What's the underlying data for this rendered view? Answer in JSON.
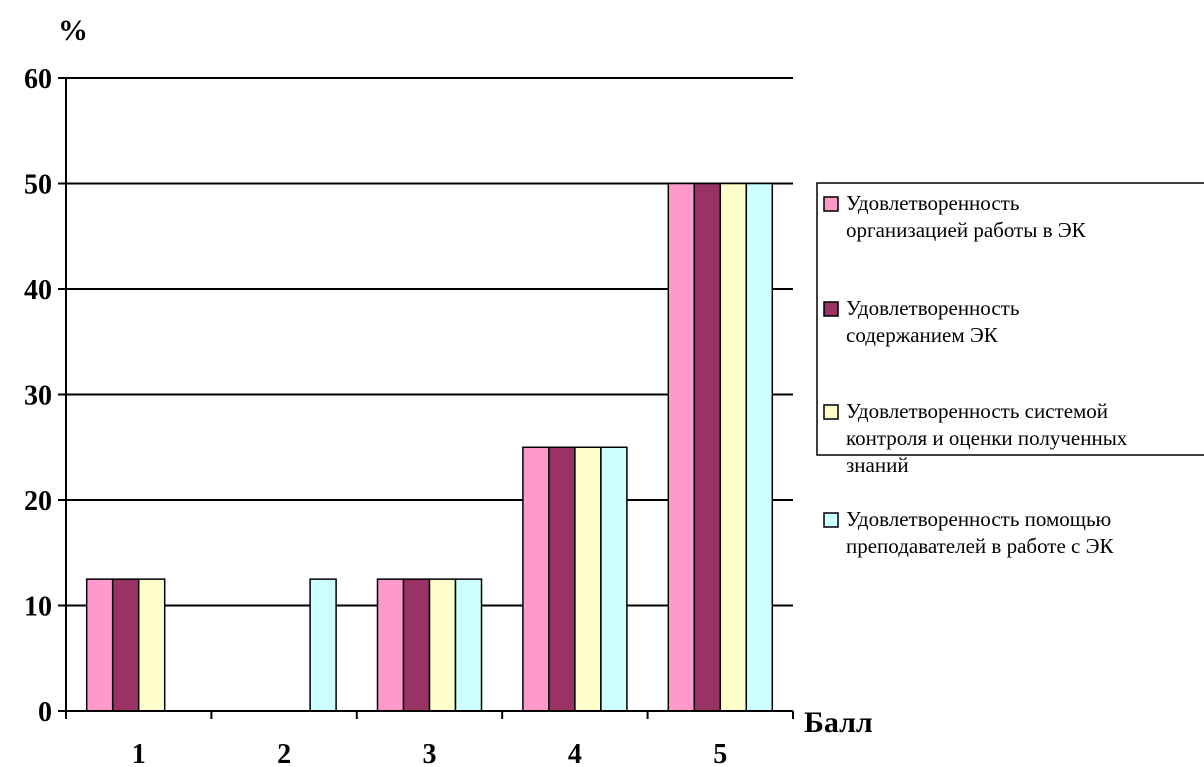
{
  "chart_data": {
    "type": "bar",
    "ylabel": "%",
    "xlabel": "Балл",
    "categories": [
      "1",
      "2",
      "3",
      "4",
      "5"
    ],
    "ylim": [
      0,
      60
    ],
    "yticks": [
      0,
      10,
      20,
      30,
      40,
      50,
      60
    ],
    "grid": true,
    "legend_position": "right",
    "series": [
      {
        "name": "Удовлетворенность организацией работы в ЭК",
        "color": "#ff99cc",
        "values": [
          12.5,
          0,
          12.5,
          25,
          50
        ]
      },
      {
        "name": "Удовлетворенность содержанием ЭК",
        "color": "#993366",
        "values": [
          12.5,
          0,
          12.5,
          25,
          50
        ]
      },
      {
        "name": "Удовлетворенность системой контроля и оценки полученных знаний",
        "color": "#ffffcc",
        "values": [
          12.5,
          0,
          12.5,
          25,
          50
        ]
      },
      {
        "name": "Удовлетворенность помощью преподавателей в работе с ЭК",
        "color": "#ccffff",
        "values": [
          0,
          12.5,
          12.5,
          25,
          50
        ]
      }
    ]
  }
}
